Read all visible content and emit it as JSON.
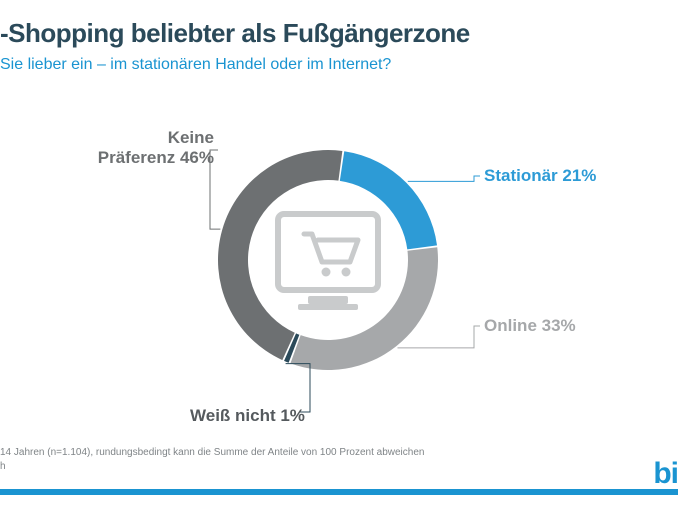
{
  "header": {
    "title": "-Shopping beliebter als Fußgängerzone",
    "title_color": "#2b4a5a",
    "title_fontsize": 26,
    "subtitle": "Sie lieber ein – im stationären Handel oder im Internet?",
    "subtitle_color": "#1a94d1",
    "subtitle_fontsize": 16
  },
  "chart": {
    "type": "donut",
    "background_color": "#ffffff",
    "ring_thickness": 30,
    "outer_radius": 110,
    "gap_deg": 1,
    "center_icon_color": "#c9cbcc",
    "slices": [
      {
        "key": "stationary",
        "label": "Stationär 21%",
        "value": 21,
        "color": "#2d9bd6",
        "label_color": "#2d9bd6",
        "leader_color": "#2d9bd6"
      },
      {
        "key": "online",
        "label": "Online 33%",
        "value": 33,
        "color": "#a6a8aa",
        "label_color": "#a6a8aa",
        "leader_color": "#a6a8aa"
      },
      {
        "key": "dont_know",
        "label": "Weiß nicht 1%",
        "value": 1,
        "color": "#2b4a5a",
        "label_color": "#555a5e",
        "leader_color": "#2b4a5a"
      },
      {
        "key": "no_preference",
        "label": "Keine\nPräferenz 46%",
        "value": 46,
        "color": "#6d7072",
        "label_color": "#6d7072",
        "leader_color": "#6d7072"
      }
    ],
    "label_fontsize": 17
  },
  "footnote": {
    "line1": "14 Jahren (n=1.104), rundungsbedingt kann die Summe der Anteile von 100 Prozent abweichen",
    "line2": "h",
    "color": "#7f8487",
    "fontsize": 10
  },
  "brand": {
    "text": "bi",
    "color": "#1a94d1",
    "fontsize": 30,
    "rule_color": "#1a94d1"
  }
}
